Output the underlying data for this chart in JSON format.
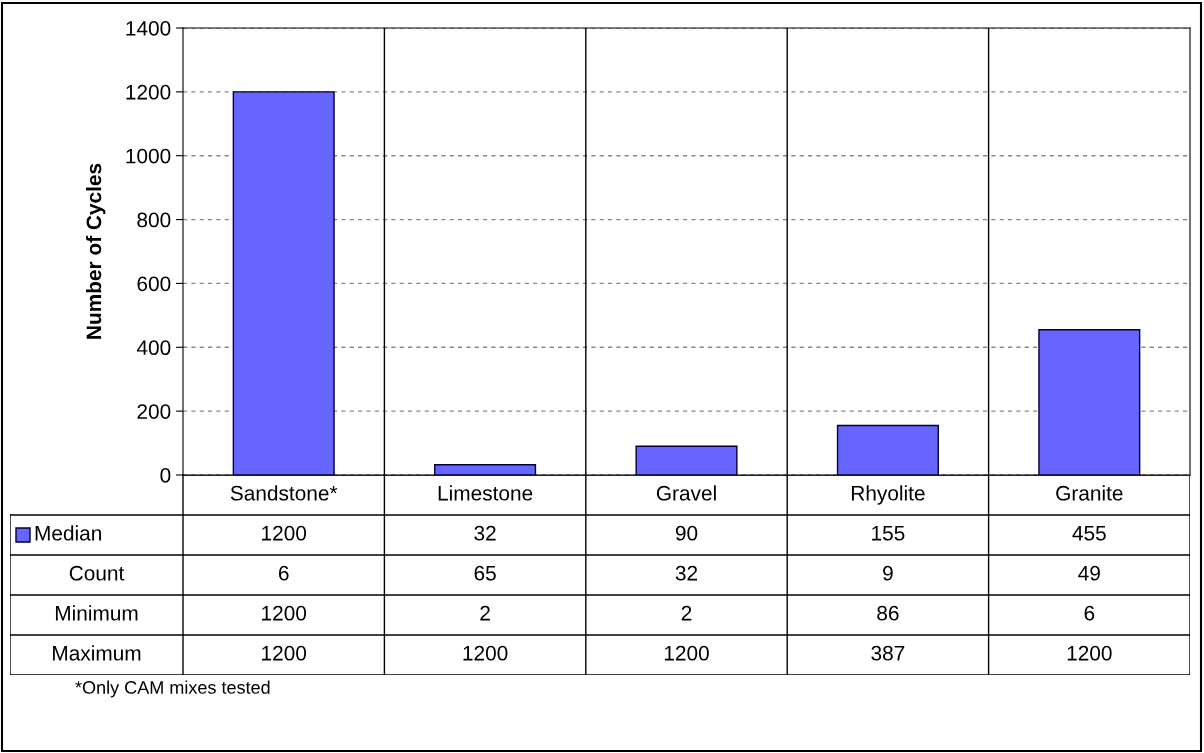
{
  "chart_data": {
    "type": "bar",
    "ylabel": "Number of Cycles",
    "categories": [
      "Sandstone*",
      "Limestone",
      "Gravel",
      "Rhyolite",
      "Granite"
    ],
    "series": [
      {
        "name": "Median",
        "color": "#6666ff",
        "values": [
          1200,
          32,
          90,
          155,
          455
        ]
      }
    ],
    "ylim": [
      0,
      1400
    ],
    "yticks": [
      0,
      200,
      400,
      600,
      800,
      1000,
      1200,
      1400
    ],
    "grid": "y",
    "line_style": "dashed",
    "legend": "bottom left",
    "data_labels": true,
    "annotations": [
      "Count",
      "6",
      "65",
      "32",
      "9",
      "49",
      "Minimum",
      "1200",
      "2",
      "2",
      "86",
      "6",
      "Maximum",
      "1200",
      "1200",
      "1200",
      "387",
      "1200",
      "*Only CAM mixes tested"
    ]
  }
}
